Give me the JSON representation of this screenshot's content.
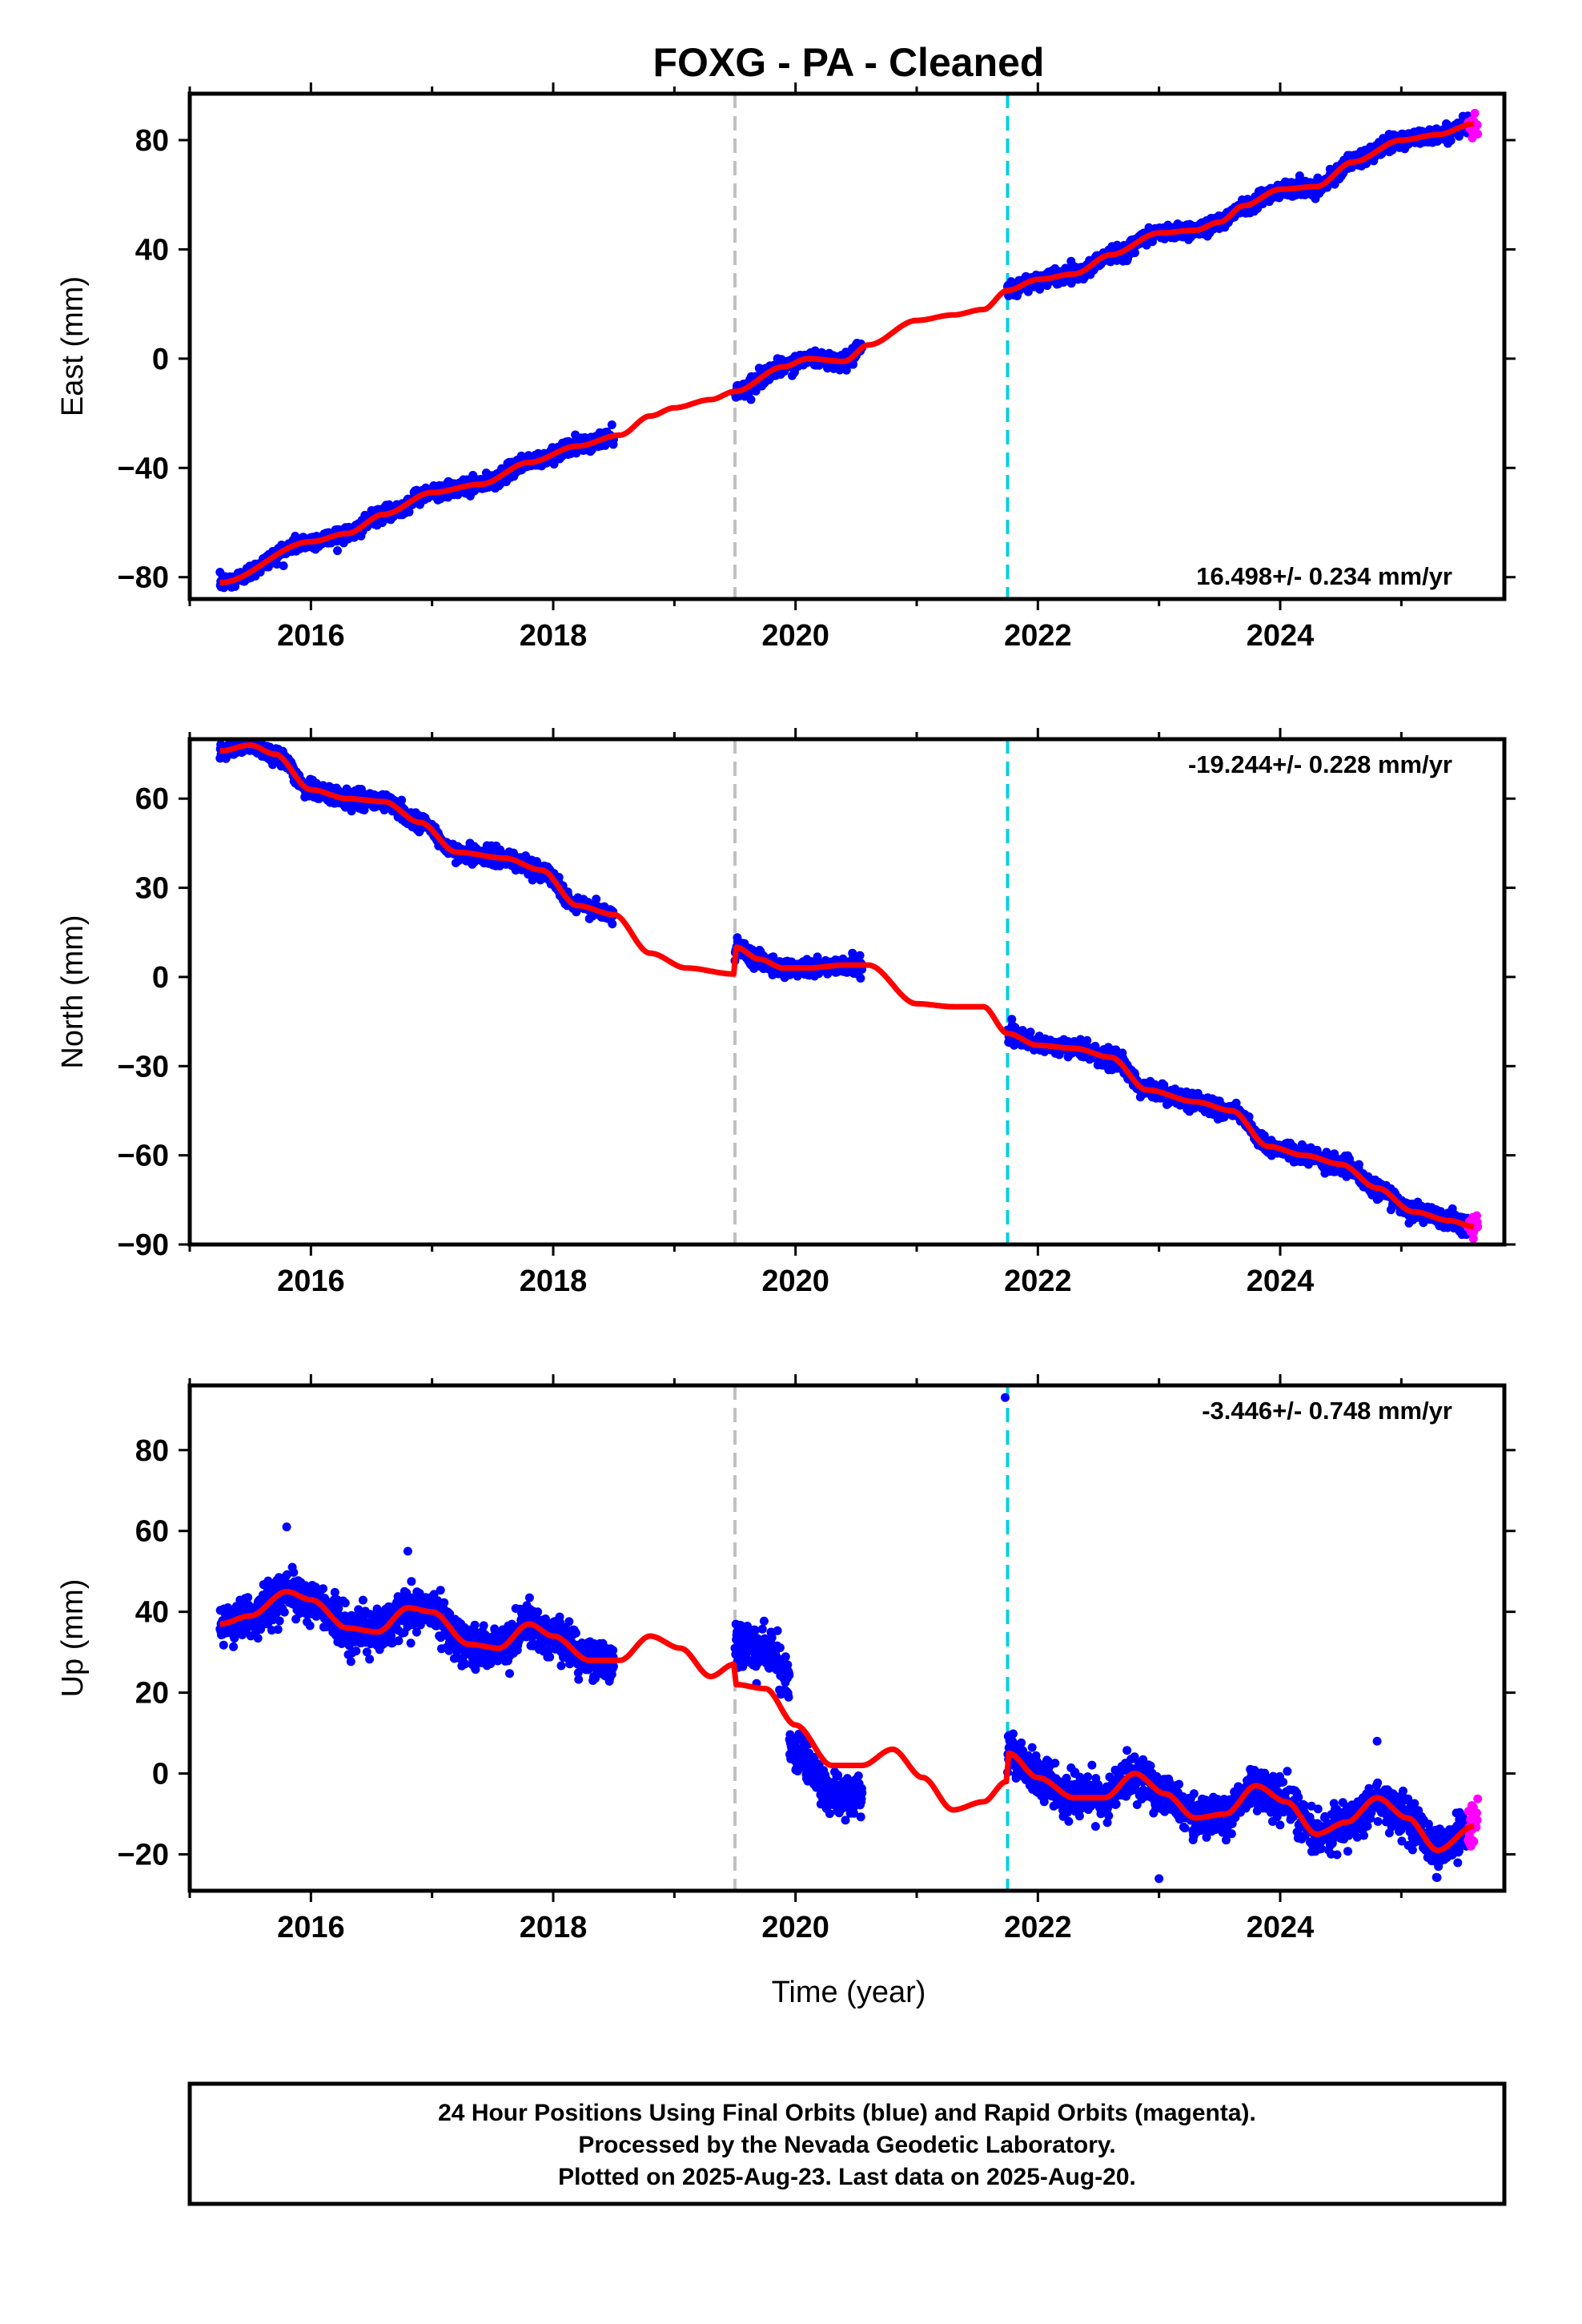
{
  "title": "FOXG  - PA - Cleaned",
  "xlabel": "Time (year)",
  "colors": {
    "final": "#0000ff",
    "rapid": "#ff00ff",
    "model": "#ff0000",
    "offset_gray": "#c0c0c0",
    "offset_cyan": "#00d0e0"
  },
  "footer": {
    "line1": "24 Hour Positions Using Final Orbits (blue) and Rapid Orbits (magenta).",
    "line2": "Processed by the Nevada Geodetic Laboratory.",
    "line3": "Plotted on 2025-Aug-23. Last data on 2025-Aug-20."
  },
  "chart_data": [
    {
      "type": "scatter",
      "component": "East",
      "ylabel": "East (mm)",
      "rate": "16.498+/- 0.234 mm/yr",
      "xlim": [
        2015.0,
        2025.85
      ],
      "ylim": [
        -88,
        97
      ],
      "xticks": [
        2016,
        2018,
        2020,
        2022,
        2024
      ],
      "yticks": [
        -80,
        -40,
        0,
        40,
        80
      ],
      "offsets": [
        2019.5,
        2021.75
      ],
      "data_segments": [
        [
          2015.25,
          2018.5
        ],
        [
          2019.5,
          2020.55
        ],
        [
          2021.75,
          2025.55
        ]
      ],
      "rapid_segment": [
        2025.55,
        2025.63
      ],
      "model_anchors": {
        "x": [
          2015.25,
          2016.0,
          2016.3,
          2016.6,
          2017.0,
          2017.4,
          2017.8,
          2018.2,
          2018.55,
          2018.8,
          2019.0,
          2019.3,
          2019.5,
          2019.9,
          2020.1,
          2020.4,
          2020.6,
          2021.0,
          2021.3,
          2021.55,
          2021.75,
          2022.0,
          2022.3,
          2022.6,
          2023.0,
          2023.3,
          2023.5,
          2023.7,
          2024.0,
          2024.3,
          2024.6,
          2025.0,
          2025.3,
          2025.6
        ],
        "y": [
          -82,
          -67,
          -64,
          -57,
          -49,
          -46,
          -38,
          -32,
          -28,
          -21,
          -18,
          -15,
          -12,
          -3,
          0,
          -1,
          5,
          14,
          16,
          18,
          25,
          29,
          31,
          38,
          46,
          47,
          50,
          56,
          62,
          63,
          72,
          80,
          82,
          86
        ]
      },
      "scatter_spread": 2.5
    },
    {
      "type": "scatter",
      "component": "North",
      "ylabel": "North (mm)",
      "rate": "-19.244+/- 0.228 mm/yr",
      "xlim": [
        2015.0,
        2025.85
      ],
      "ylim": [
        -90,
        80
      ],
      "xticks": [
        2016,
        2018,
        2020,
        2022,
        2024
      ],
      "yticks": [
        -90,
        -60,
        -30,
        0,
        30,
        60
      ],
      "offsets": [
        2019.5,
        2021.75
      ],
      "data_segments": [
        [
          2015.25,
          2018.5
        ],
        [
          2019.5,
          2020.55
        ],
        [
          2021.75,
          2025.55
        ]
      ],
      "rapid_segment": [
        2025.55,
        2025.63
      ],
      "model_anchors": {
        "x": [
          2015.25,
          2015.5,
          2015.7,
          2016.0,
          2016.3,
          2016.6,
          2016.9,
          2017.2,
          2017.6,
          2017.9,
          2018.2,
          2018.5,
          2018.8,
          2019.1,
          2019.49,
          2019.51,
          2019.7,
          2019.9,
          2020.1,
          2020.4,
          2020.6,
          2021.0,
          2021.3,
          2021.55,
          2021.75,
          2022.0,
          2022.3,
          2022.6,
          2022.9,
          2023.3,
          2023.6,
          2023.9,
          2024.2,
          2024.5,
          2024.8,
          2025.1,
          2025.4,
          2025.6
        ],
        "y": [
          76,
          78,
          75,
          63,
          60,
          59,
          52,
          42,
          40,
          36,
          24,
          21,
          8,
          3,
          1,
          10,
          6,
          3,
          3,
          4,
          4,
          -9,
          -10,
          -10,
          -19,
          -23,
          -24,
          -27,
          -38,
          -42,
          -45,
          -57,
          -60,
          -63,
          -71,
          -79,
          -82,
          -84
        ]
      },
      "scatter_spread": 2.5
    },
    {
      "type": "scatter",
      "component": "Up",
      "ylabel": "Up (mm)",
      "rate": "-3.446+/- 0.748 mm/yr",
      "xlim": [
        2015.0,
        2025.85
      ],
      "ylim": [
        -29,
        96
      ],
      "xticks": [
        2016,
        2018,
        2020,
        2022,
        2024
      ],
      "yticks": [
        -20,
        0,
        20,
        40,
        60,
        80
      ],
      "offsets": [
        2019.5,
        2021.75
      ],
      "data_segments": [
        [
          2015.25,
          2018.5
        ],
        [
          2019.5,
          2019.95
        ],
        [
          2019.95,
          2020.55
        ],
        [
          2021.75,
          2025.55
        ]
      ],
      "rapid_segment": [
        2025.55,
        2025.63
      ],
      "model_anchors": {
        "x": [
          2015.25,
          2015.5,
          2015.8,
          2016.0,
          2016.3,
          2016.55,
          2016.8,
          2017.0,
          2017.3,
          2017.55,
          2017.8,
          2018.0,
          2018.3,
          2018.55,
          2018.8,
          2019.05,
          2019.3,
          2019.49,
          2019.51,
          2019.75,
          2020.0,
          2020.3,
          2020.55,
          2020.8,
          2021.05,
          2021.3,
          2021.55,
          2021.74,
          2021.76,
          2022.0,
          2022.3,
          2022.55,
          2022.8,
          2023.05,
          2023.3,
          2023.55,
          2023.8,
          2024.05,
          2024.3,
          2024.55,
          2024.8,
          2025.05,
          2025.3,
          2025.6
        ],
        "y": [
          37,
          39,
          45,
          43,
          36,
          35,
          41,
          40,
          32,
          31,
          37,
          34,
          28,
          28,
          34,
          31,
          24,
          27,
          22,
          21,
          12,
          2,
          2,
          6,
          -1,
          -9,
          -7,
          -2,
          5,
          -1,
          -6,
          -6,
          0,
          -5,
          -11,
          -10,
          -3,
          -7,
          -15,
          -12,
          -6,
          -11,
          -19,
          -13
        ]
      },
      "segment_offsets": [
        0,
        10,
        -7,
        0
      ],
      "scatter_spread": 4.5,
      "outliers": [
        [
          2021.73,
          93
        ],
        [
          2015.8,
          61
        ],
        [
          2016.8,
          55
        ],
        [
          2024.8,
          8
        ],
        [
          2023.0,
          -26
        ]
      ]
    }
  ]
}
